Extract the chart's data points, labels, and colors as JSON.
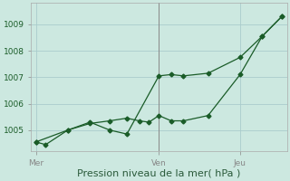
{
  "background_color": "#cce8e0",
  "grid_color": "#aacccc",
  "line_color": "#1a5c28",
  "xlabel": "Pression niveau de la mer( hPa )",
  "ylim": [
    1004.2,
    1009.8
  ],
  "yticks": [
    1005,
    1006,
    1007,
    1008,
    1009
  ],
  "xtick_labels": [
    "Mer",
    "Ven",
    "Jeu"
  ],
  "xtick_positions": [
    0.0,
    0.5,
    0.83
  ],
  "vline_x": 0.5,
  "line1_x": [
    0.0,
    0.04,
    0.13,
    0.22,
    0.3,
    0.37,
    0.42,
    0.46,
    0.5,
    0.55,
    0.6,
    0.7,
    0.83,
    0.92,
    1.0
  ],
  "line1_y": [
    1004.55,
    1004.45,
    1005.0,
    1005.25,
    1005.35,
    1005.45,
    1005.35,
    1005.3,
    1005.55,
    1005.35,
    1005.35,
    1005.55,
    1007.1,
    1008.55,
    1009.3
  ],
  "line2_x": [
    0.0,
    0.13,
    0.22,
    0.3,
    0.37,
    0.5,
    0.55,
    0.6,
    0.7,
    0.83,
    0.92,
    1.0
  ],
  "line2_y": [
    1004.55,
    1005.0,
    1005.3,
    1005.0,
    1004.85,
    1007.05,
    1007.1,
    1007.05,
    1007.15,
    1007.75,
    1008.55,
    1009.3
  ],
  "marker": "D",
  "markersize": 2.5,
  "linewidth": 0.9,
  "xlabel_fontsize": 8,
  "tick_fontsize": 6.5
}
